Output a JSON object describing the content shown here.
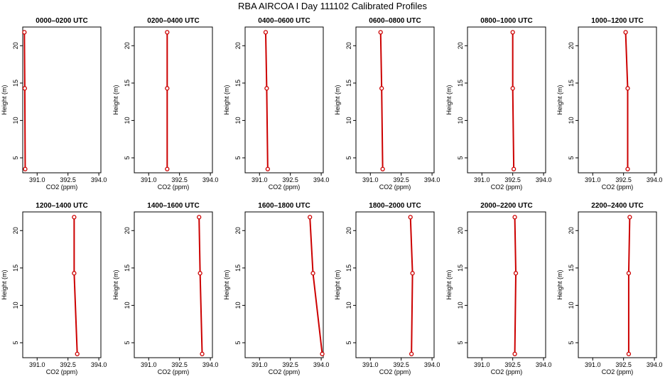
{
  "figure": {
    "title": "RBA AIRCOA I  Day 111102  Calibrated Profiles"
  },
  "chart_data": [
    {
      "type": "line",
      "title": "0000–0200 UTC",
      "xlabel": "CO2 (ppm)",
      "ylabel": "Height (m)",
      "xlim": [
        390.3,
        394.1
      ],
      "ylim": [
        3,
        22.5
      ],
      "xticks": [
        "391.0",
        "392.5",
        "394.0"
      ],
      "yticks": [
        "5",
        "10",
        "15",
        "20"
      ],
      "series": [
        {
          "x": [
            390.42,
            390.4,
            390.38
          ],
          "y": [
            3.5,
            14.3,
            21.8
          ]
        }
      ],
      "color": "#cc0000"
    },
    {
      "type": "line",
      "title": "0200–0400 UTC",
      "xlabel": "CO2 (ppm)",
      "ylabel": "Height (m)",
      "xlim": [
        390.3,
        394.1
      ],
      "ylim": [
        3,
        22.5
      ],
      "xticks": [
        "391.0",
        "392.5",
        "394.0"
      ],
      "yticks": [
        "5",
        "10",
        "15",
        "20"
      ],
      "series": [
        {
          "x": [
            391.9,
            391.9,
            391.9
          ],
          "y": [
            3.5,
            14.3,
            21.8
          ]
        }
      ],
      "color": "#cc0000"
    },
    {
      "type": "line",
      "title": "0400–0600 UTC",
      "xlabel": "CO2 (ppm)",
      "ylabel": "Height (m)",
      "xlim": [
        390.3,
        394.1
      ],
      "ylim": [
        3,
        22.5
      ],
      "xticks": [
        "391.0",
        "392.5",
        "394.0"
      ],
      "yticks": [
        "5",
        "10",
        "15",
        "20"
      ],
      "series": [
        {
          "x": [
            391.4,
            391.35,
            391.3
          ],
          "y": [
            3.5,
            14.3,
            21.8
          ]
        }
      ],
      "color": "#cc0000"
    },
    {
      "type": "line",
      "title": "0600–0800 UTC",
      "xlabel": "CO2 (ppm)",
      "ylabel": "Height (m)",
      "xlim": [
        390.3,
        394.1
      ],
      "ylim": [
        3,
        22.5
      ],
      "xticks": [
        "391.0",
        "392.5",
        "394.0"
      ],
      "yticks": [
        "5",
        "10",
        "15",
        "20"
      ],
      "series": [
        {
          "x": [
            391.6,
            391.55,
            391.5
          ],
          "y": [
            3.5,
            14.3,
            21.8
          ]
        }
      ],
      "color": "#cc0000"
    },
    {
      "type": "line",
      "title": "0800–1000 UTC",
      "xlabel": "CO2 (ppm)",
      "ylabel": "Height (m)",
      "xlim": [
        390.3,
        394.1
      ],
      "ylim": [
        3,
        22.5
      ],
      "xticks": [
        "391.0",
        "392.5",
        "394.0"
      ],
      "yticks": [
        "5",
        "10",
        "15",
        "20"
      ],
      "series": [
        {
          "x": [
            392.55,
            392.5,
            392.5
          ],
          "y": [
            3.5,
            14.3,
            21.8
          ]
        }
      ],
      "color": "#cc0000"
    },
    {
      "type": "line",
      "title": "1000–1200 UTC",
      "xlabel": "CO2 (ppm)",
      "ylabel": "Height (m)",
      "xlim": [
        390.3,
        394.1
      ],
      "ylim": [
        3,
        22.5
      ],
      "xticks": [
        "391.0",
        "392.5",
        "394.0"
      ],
      "yticks": [
        "5",
        "10",
        "15",
        "20"
      ],
      "series": [
        {
          "x": [
            392.7,
            392.7,
            392.6
          ],
          "y": [
            3.5,
            14.3,
            21.8
          ]
        }
      ],
      "color": "#cc0000"
    },
    {
      "type": "line",
      "title": "1200–1400 UTC",
      "xlabel": "CO2 (ppm)",
      "ylabel": "Height (m)",
      "xlim": [
        390.3,
        394.1
      ],
      "ylim": [
        3,
        22.5
      ],
      "xticks": [
        "391.0",
        "392.5",
        "394.0"
      ],
      "yticks": [
        "5",
        "10",
        "15",
        "20"
      ],
      "series": [
        {
          "x": [
            392.95,
            392.8,
            392.8
          ],
          "y": [
            3.5,
            14.3,
            21.8
          ]
        }
      ],
      "color": "#cc0000"
    },
    {
      "type": "line",
      "title": "1400–1600 UTC",
      "xlabel": "CO2 (ppm)",
      "ylabel": "Height (m)",
      "xlim": [
        390.3,
        394.1
      ],
      "ylim": [
        3,
        22.5
      ],
      "xticks": [
        "391.0",
        "392.5",
        "394.0"
      ],
      "yticks": [
        "5",
        "10",
        "15",
        "20"
      ],
      "series": [
        {
          "x": [
            393.6,
            393.5,
            393.45
          ],
          "y": [
            3.5,
            14.3,
            21.8
          ]
        }
      ],
      "color": "#cc0000"
    },
    {
      "type": "line",
      "title": "1600–1800 UTC",
      "xlabel": "CO2 (ppm)",
      "ylabel": "Height (m)",
      "xlim": [
        390.3,
        394.1
      ],
      "ylim": [
        3,
        22.5
      ],
      "xticks": [
        "391.0",
        "392.5",
        "394.0"
      ],
      "yticks": [
        "5",
        "10",
        "15",
        "20"
      ],
      "series": [
        {
          "x": [
            394.05,
            393.6,
            393.45
          ],
          "y": [
            3.5,
            14.3,
            21.8
          ]
        }
      ],
      "color": "#cc0000"
    },
    {
      "type": "line",
      "title": "1800–2000 UTC",
      "xlabel": "CO2 (ppm)",
      "ylabel": "Height (m)",
      "xlim": [
        390.3,
        394.1
      ],
      "ylim": [
        3,
        22.5
      ],
      "xticks": [
        "391.0",
        "392.5",
        "394.0"
      ],
      "yticks": [
        "5",
        "10",
        "15",
        "20"
      ],
      "series": [
        {
          "x": [
            393.0,
            393.05,
            392.95
          ],
          "y": [
            3.5,
            14.3,
            21.8
          ]
        }
      ],
      "color": "#cc0000"
    },
    {
      "type": "line",
      "title": "2000–2200 UTC",
      "xlabel": "CO2 (ppm)",
      "ylabel": "Height (m)",
      "xlim": [
        390.3,
        394.1
      ],
      "ylim": [
        3,
        22.5
      ],
      "xticks": [
        "391.0",
        "392.5",
        "394.0"
      ],
      "yticks": [
        "5",
        "10",
        "15",
        "20"
      ],
      "series": [
        {
          "x": [
            392.6,
            392.65,
            392.6
          ],
          "y": [
            3.5,
            14.3,
            21.8
          ]
        }
      ],
      "color": "#cc0000"
    },
    {
      "type": "line",
      "title": "2200–2400 UTC",
      "xlabel": "CO2 (ppm)",
      "ylabel": "Height (m)",
      "xlim": [
        390.3,
        394.1
      ],
      "ylim": [
        3,
        22.5
      ],
      "xticks": [
        "391.0",
        "392.5",
        "394.0"
      ],
      "yticks": [
        "5",
        "10",
        "15",
        "20"
      ],
      "series": [
        {
          "x": [
            392.75,
            392.75,
            392.8
          ],
          "y": [
            3.5,
            14.3,
            21.8
          ]
        }
      ],
      "color": "#cc0000"
    }
  ]
}
